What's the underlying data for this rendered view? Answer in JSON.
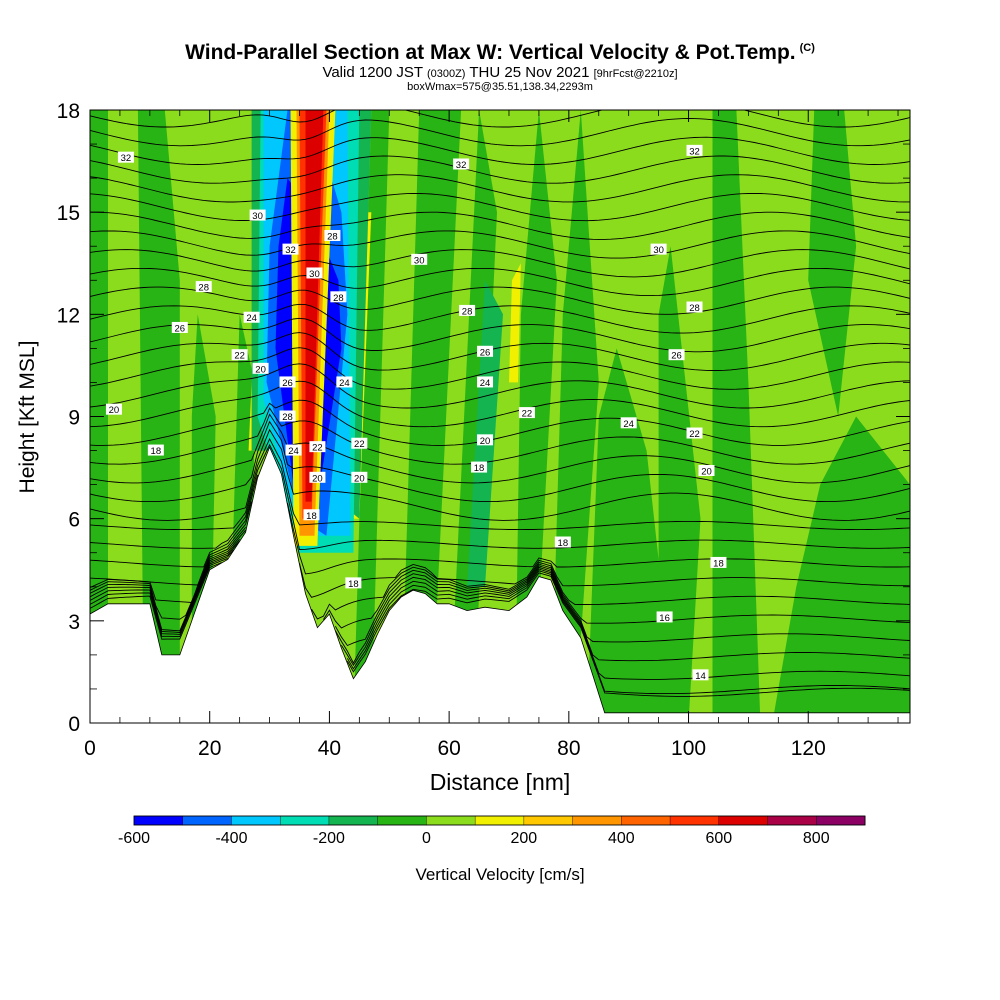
{
  "chart_data": {
    "type": "heatmap",
    "title": "Wind-Parallel Section at Max W: Vertical Velocity & Pot.Temp.",
    "title_tag": "(C)",
    "subtitle_prefix": "Valid 1200 JST",
    "subtitle_small1": "(0300Z)",
    "subtitle_main": "THU 25 Nov 2021",
    "subtitle_small2": "[9hrFcst@2210z]",
    "info_line": "boxWmax=575@35.51,138.34,2293m",
    "xlabel": "Distance [nm]",
    "ylabel": "Height [Kft MSL]",
    "xlim": [
      0,
      137
    ],
    "ylim": [
      0,
      18
    ],
    "x_ticks": [
      0,
      20,
      40,
      60,
      80,
      100,
      120
    ],
    "y_ticks": [
      0,
      3,
      6,
      9,
      12,
      15,
      18
    ],
    "colorbar": {
      "label": "Vertical Velocity [cm/s]",
      "range": [
        -600,
        900
      ],
      "tick_values": [
        -600,
        -400,
        -200,
        0,
        200,
        400,
        600,
        800
      ],
      "colors": [
        "#0000ff",
        "#0064ff",
        "#00c8ff",
        "#00dcb4",
        "#14b450",
        "#28b414",
        "#8cdc1e",
        "#f0f000",
        "#ffc800",
        "#ff9600",
        "#ff6400",
        "#ff3200",
        "#dc0000",
        "#aa0046",
        "#8c0064"
      ]
    },
    "field_colors": {
      "updraft_light": "#8cdc1e",
      "neutral": "#28b414",
      "weak_down": "#14b450",
      "terrain": "#ffffff"
    },
    "terrain_profile": {
      "x": [
        0,
        3,
        10,
        12,
        15,
        17,
        20,
        23,
        26,
        28,
        30,
        32,
        34,
        36,
        38,
        40,
        42,
        44,
        46,
        48,
        50,
        52,
        54,
        56,
        58,
        60,
        63,
        66,
        70,
        73,
        75,
        77,
        79,
        82,
        84,
        86,
        137
      ],
      "y": [
        3.2,
        3.5,
        3.5,
        2.0,
        2.0,
        3.0,
        4.5,
        4.8,
        5.6,
        7.2,
        8.1,
        7.3,
        5.5,
        3.8,
        2.8,
        3.2,
        2.2,
        1.3,
        1.8,
        2.6,
        3.3,
        3.7,
        3.9,
        3.8,
        3.5,
        3.5,
        3.3,
        3.4,
        3.3,
        3.7,
        4.3,
        4.2,
        3.3,
        2.5,
        1.4,
        0.3,
        0.3
      ]
    },
    "theta_contour_labels": [
      {
        "text": "32",
        "x": 6,
        "y": 16.6
      },
      {
        "text": "32",
        "x": 62,
        "y": 16.4
      },
      {
        "text": "32",
        "x": 101,
        "y": 16.8
      },
      {
        "text": "30",
        "x": 28,
        "y": 14.9
      },
      {
        "text": "32",
        "x": 33.5,
        "y": 13.9
      },
      {
        "text": "30",
        "x": 37.5,
        "y": 13.2
      },
      {
        "text": "28",
        "x": 40.5,
        "y": 14.3
      },
      {
        "text": "28",
        "x": 41.5,
        "y": 12.5
      },
      {
        "text": "30",
        "x": 55,
        "y": 13.6
      },
      {
        "text": "30",
        "x": 95,
        "y": 13.9
      },
      {
        "text": "28",
        "x": 19,
        "y": 12.8
      },
      {
        "text": "26",
        "x": 15,
        "y": 11.6
      },
      {
        "text": "24",
        "x": 27,
        "y": 11.9
      },
      {
        "text": "22",
        "x": 25,
        "y": 10.8
      },
      {
        "text": "28",
        "x": 63,
        "y": 12.1
      },
      {
        "text": "28",
        "x": 101,
        "y": 12.2
      },
      {
        "text": "26",
        "x": 66,
        "y": 10.9
      },
      {
        "text": "26",
        "x": 98,
        "y": 10.8
      },
      {
        "text": "20",
        "x": 28.5,
        "y": 10.4
      },
      {
        "text": "26",
        "x": 33,
        "y": 10.0
      },
      {
        "text": "24",
        "x": 42.5,
        "y": 10.0
      },
      {
        "text": "24",
        "x": 66,
        "y": 10.0
      },
      {
        "text": "20",
        "x": 4,
        "y": 9.2
      },
      {
        "text": "28",
        "x": 33,
        "y": 9.0
      },
      {
        "text": "22",
        "x": 73,
        "y": 9.1
      },
      {
        "text": "24",
        "x": 90,
        "y": 8.8
      },
      {
        "text": "18",
        "x": 11,
        "y": 8.0
      },
      {
        "text": "24",
        "x": 34,
        "y": 8.0
      },
      {
        "text": "22",
        "x": 38,
        "y": 8.1
      },
      {
        "text": "22",
        "x": 45,
        "y": 8.2
      },
      {
        "text": "20",
        "x": 66,
        "y": 8.3
      },
      {
        "text": "22",
        "x": 101,
        "y": 8.5
      },
      {
        "text": "18",
        "x": 65,
        "y": 7.5
      },
      {
        "text": "20",
        "x": 103,
        "y": 7.4
      },
      {
        "text": "20",
        "x": 38,
        "y": 7.2
      },
      {
        "text": "20",
        "x": 45,
        "y": 7.2
      },
      {
        "text": "18",
        "x": 37,
        "y": 6.1
      },
      {
        "text": "18",
        "x": 79,
        "y": 5.3
      },
      {
        "text": "18",
        "x": 105,
        "y": 4.7
      },
      {
        "text": "18",
        "x": 44,
        "y": 4.1
      },
      {
        "text": "16",
        "x": 96,
        "y": 3.1
      },
      {
        "text": "14",
        "x": 102,
        "y": 1.4
      }
    ]
  }
}
